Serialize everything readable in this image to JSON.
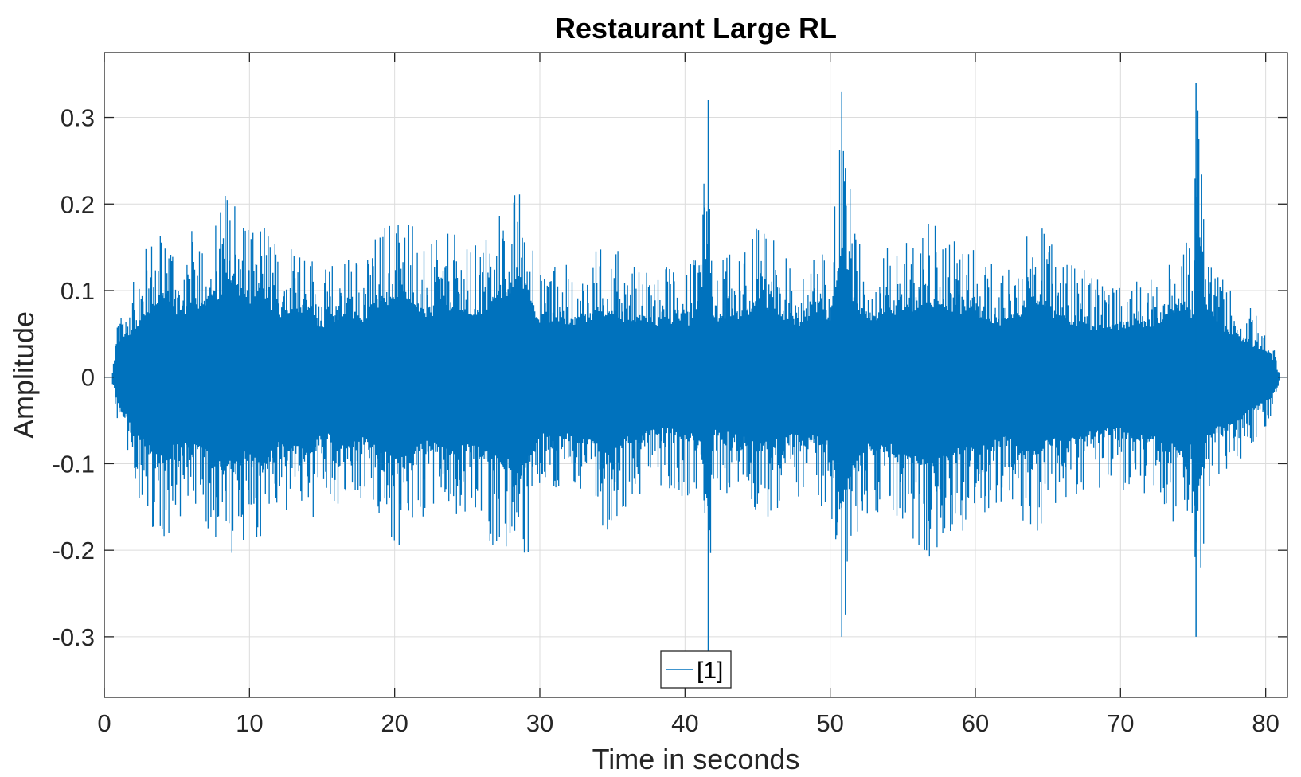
{
  "chart_data": {
    "type": "line",
    "title": "Restaurant Large RL",
    "xlabel": "Time in seconds",
    "ylabel": "Amplitude",
    "xlim": [
      0,
      81.5
    ],
    "ylim": [
      -0.37,
      0.375
    ],
    "xticks": [
      0,
      10,
      20,
      30,
      40,
      50,
      60,
      70,
      80
    ],
    "yticks": [
      -0.3,
      -0.2,
      -0.1,
      0,
      0.1,
      0.2,
      0.3
    ],
    "xtick_labels": [
      "0",
      "10",
      "20",
      "30",
      "40",
      "50",
      "60",
      "70",
      "80"
    ],
    "ytick_labels": [
      "-0.3",
      "-0.2",
      "-0.1",
      "0",
      "0.1",
      "0.2",
      "0.3"
    ],
    "grid": true,
    "legend_position": "bottom-center",
    "series": [
      {
        "name": "[1]",
        "color": "#0072BD",
        "x_start": 0.5,
        "x_end": 81,
        "envelope": {
          "description_type": "waveform envelope (approximate)",
          "time": [
            0.5,
            1.0,
            2.0,
            3.0,
            4.0,
            4.3,
            5.0,
            6.0,
            7.0,
            8.0,
            8.3,
            9.0,
            10.0,
            11.0,
            12.0,
            13.0,
            14.0,
            15.0,
            16.0,
            17.0,
            18.0,
            19.0,
            20.0,
            21.0,
            22.0,
            23.0,
            24.0,
            25.0,
            26.0,
            27.0,
            28.0,
            28.7,
            29.5,
            30.0,
            31.0,
            32.0,
            33.0,
            34.0,
            35.0,
            36.0,
            37.0,
            38.0,
            39.0,
            40.0,
            41.0,
            41.6,
            42.0,
            43.0,
            44.0,
            45.0,
            46.0,
            47.0,
            48.0,
            49.0,
            50.0,
            50.8,
            51.5,
            52.0,
            53.0,
            54.0,
            55.0,
            56.0,
            57.0,
            58.0,
            59.0,
            60.0,
            61.0,
            62.0,
            63.0,
            63.8,
            65.0,
            66.0,
            67.0,
            68.0,
            69.0,
            70.0,
            71.0,
            72.0,
            73.0,
            74.0,
            75.0,
            75.2,
            76.0,
            77.0,
            78.0,
            79.0,
            80.0,
            80.5,
            81.0
          ],
          "upper": [
            0.0,
            0.08,
            0.11,
            0.16,
            0.18,
            0.2,
            0.15,
            0.17,
            0.18,
            0.2,
            0.22,
            0.22,
            0.18,
            0.19,
            0.15,
            0.17,
            0.16,
            0.12,
            0.14,
            0.15,
            0.14,
            0.18,
            0.19,
            0.2,
            0.15,
            0.16,
            0.17,
            0.15,
            0.16,
            0.19,
            0.21,
            0.23,
            0.18,
            0.12,
            0.14,
            0.13,
            0.14,
            0.15,
            0.16,
            0.13,
            0.14,
            0.13,
            0.13,
            0.13,
            0.14,
            0.32,
            0.12,
            0.15,
            0.14,
            0.18,
            0.16,
            0.14,
            0.13,
            0.15,
            0.14,
            0.33,
            0.2,
            0.16,
            0.14,
            0.15,
            0.16,
            0.17,
            0.18,
            0.17,
            0.16,
            0.15,
            0.14,
            0.13,
            0.15,
            0.2,
            0.16,
            0.14,
            0.13,
            0.12,
            0.12,
            0.12,
            0.13,
            0.12,
            0.14,
            0.17,
            0.15,
            0.34,
            0.15,
            0.12,
            0.1,
            0.08,
            0.06,
            0.04,
            0.0
          ],
          "lower": [
            0.0,
            -0.07,
            -0.12,
            -0.17,
            -0.19,
            -0.2,
            -0.16,
            -0.17,
            -0.18,
            -0.2,
            -0.23,
            -0.2,
            -0.18,
            -0.21,
            -0.16,
            -0.17,
            -0.19,
            -0.14,
            -0.15,
            -0.16,
            -0.15,
            -0.18,
            -0.21,
            -0.2,
            -0.16,
            -0.17,
            -0.18,
            -0.17,
            -0.18,
            -0.2,
            -0.21,
            -0.23,
            -0.19,
            -0.13,
            -0.15,
            -0.14,
            -0.15,
            -0.17,
            -0.18,
            -0.15,
            -0.14,
            -0.13,
            -0.13,
            -0.14,
            -0.15,
            -0.32,
            -0.13,
            -0.14,
            -0.15,
            -0.17,
            -0.16,
            -0.15,
            -0.14,
            -0.15,
            -0.16,
            -0.3,
            -0.23,
            -0.18,
            -0.16,
            -0.17,
            -0.18,
            -0.2,
            -0.21,
            -0.19,
            -0.18,
            -0.17,
            -0.16,
            -0.15,
            -0.17,
            -0.19,
            -0.16,
            -0.15,
            -0.14,
            -0.14,
            -0.13,
            -0.13,
            -0.15,
            -0.14,
            -0.16,
            -0.18,
            -0.17,
            -0.3,
            -0.14,
            -0.12,
            -0.1,
            -0.08,
            -0.06,
            -0.04,
            0.0
          ]
        },
        "peaks": [
          {
            "t": 41.6,
            "value": 0.32
          },
          {
            "t": 41.6,
            "value": -0.32
          },
          {
            "t": 50.8,
            "value": 0.33
          },
          {
            "t": 50.8,
            "value": -0.3
          },
          {
            "t": 75.2,
            "value": 0.34
          },
          {
            "t": 75.2,
            "value": -0.3
          }
        ]
      }
    ]
  }
}
